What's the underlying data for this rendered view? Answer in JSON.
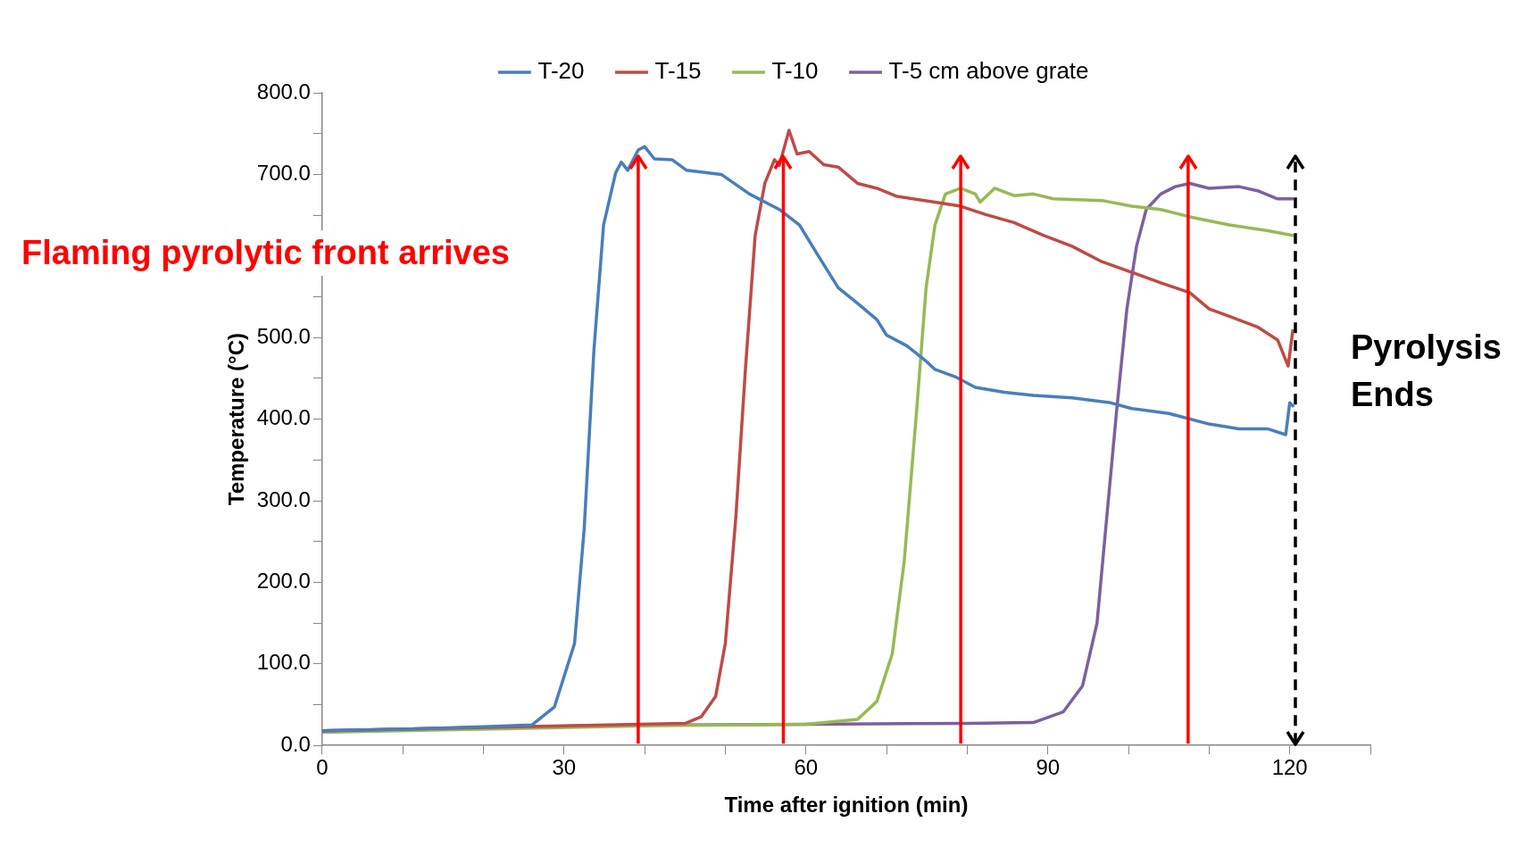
{
  "chart_data": {
    "type": "line",
    "xlabel": "Time after ignition (min)",
    "ylabel": "Temperature (°C)",
    "xlim": [
      0,
      130
    ],
    "xticks": [
      0,
      {
        "value": 10,
        "label": null
      },
      {
        "value": 20,
        "label": null
      },
      30,
      {
        "value": 40,
        "label": null
      },
      {
        "value": 50,
        "label": null
      },
      60,
      {
        "value": 70,
        "label": null
      },
      {
        "value": 80,
        "label": null
      },
      90,
      {
        "value": 100,
        "label": null
      },
      {
        "value": 110,
        "label": null
      },
      120,
      {
        "value": 130,
        "label": null
      }
    ],
    "ylim": [
      0,
      800
    ],
    "yticks": [
      {
        "value": 0,
        "label": "0.0"
      },
      {
        "value": 50,
        "label": null
      },
      {
        "value": 100,
        "label": "100.0"
      },
      {
        "value": 150,
        "label": null
      },
      {
        "value": 200,
        "label": "200.0"
      },
      {
        "value": 250,
        "label": null
      },
      {
        "value": 300,
        "label": "300.0"
      },
      {
        "value": 350,
        "label": null
      },
      {
        "value": 400,
        "label": "400.0"
      },
      {
        "value": 450,
        "label": null
      },
      {
        "value": 500,
        "label": "500.0"
      },
      {
        "value": 550,
        "label": null
      },
      {
        "value": 600,
        "label": null
      },
      {
        "value": 650,
        "label": null
      },
      {
        "value": 700,
        "label": "700.0"
      },
      {
        "value": 750,
        "label": null
      },
      {
        "value": 800,
        "label": "800.0"
      }
    ],
    "grid": false,
    "legend": "top",
    "marker": "none",
    "line_style": "solid",
    "series": [
      {
        "name": "T-20",
        "color": "#4a7ebb",
        "x": [
          0,
          10,
          20,
          26,
          28.8,
          31.3,
          32.5,
          33.7,
          34.9,
          36.4,
          37.1,
          37.9,
          39.2,
          40,
          41.2,
          43.4,
          45.2,
          49.5,
          53,
          56.7,
          59.2,
          61.6,
          64,
          66.4,
          68.8,
          70,
          72.5,
          74.9,
          76,
          78.5,
          81,
          84.6,
          88.2,
          93,
          97.8,
          100.4,
          105,
          110,
          113.7,
          117.3,
          119.5,
          120,
          120.5
        ],
        "values": [
          18,
          20,
          23,
          25,
          47,
          125,
          266,
          484,
          638,
          702,
          715,
          705,
          730,
          734,
          719,
          718,
          705,
          700,
          676,
          657,
          638,
          599,
          561,
          542,
          522,
          503,
          490,
          471,
          461,
          452,
          439,
          433,
          429,
          426,
          420,
          413,
          407,
          394,
          388,
          388,
          381,
          420,
          415
        ]
      },
      {
        "name": "T-15",
        "color": "#be4b48",
        "x": [
          0,
          15,
          30,
          45,
          47,
          48.8,
          50,
          51.3,
          52.5,
          53.7,
          54.9,
          56.1,
          56.7,
          57.9,
          58.9,
          60.4,
          62.2,
          64,
          66.4,
          68.8,
          71.3,
          76,
          79.2,
          82.2,
          85.8,
          89.5,
          93,
          96.7,
          100.4,
          104,
          107.6,
          110,
          112.5,
          116,
          118.5,
          119.8,
          120.4
        ],
        "values": [
          18,
          21,
          24,
          27,
          35,
          60,
          125,
          279,
          462,
          625,
          689,
          718,
          711,
          754,
          725,
          728,
          712,
          709,
          689,
          683,
          673,
          666,
          661,
          651,
          641,
          625,
          612,
          593,
          580,
          567,
          555,
          535,
          526,
          513,
          497,
          465,
          510
        ]
      },
      {
        "name": "T-10",
        "color": "#98b954",
        "x": [
          0,
          20,
          40,
          60,
          66.4,
          68.8,
          70.7,
          72.2,
          73.7,
          74.9,
          76,
          77.3,
          79.2,
          81,
          81.6,
          83.4,
          85.8,
          88.2,
          90.7,
          96.7,
          100.4,
          104,
          107.6,
          112.5,
          117.3,
          120.5
        ],
        "values": [
          16,
          20,
          24,
          26,
          32,
          54,
          112,
          227,
          407,
          561,
          638,
          676,
          683,
          676,
          666,
          683,
          674,
          676,
          670,
          668,
          661,
          657,
          648,
          638,
          631,
          625
        ]
      },
      {
        "name": "T-5 cm above grate",
        "color": "#7d60a0",
        "x": [
          0,
          20,
          40,
          60,
          80,
          88.2,
          91.9,
          94.3,
          96.1,
          97.3,
          98.5,
          99.8,
          101,
          102.2,
          104,
          105.8,
          107.6,
          110,
          113.7,
          116,
          118.5,
          120.5
        ],
        "values": [
          18,
          22,
          25,
          26,
          27,
          28,
          41,
          73,
          150,
          279,
          407,
          535,
          612,
          657,
          676,
          685,
          689,
          683,
          685,
          680,
          670,
          670
        ]
      }
    ],
    "ref_lines": [
      {
        "axis": "x",
        "value": 39.2,
        "color": "#ff0000",
        "line_style": "solid"
      },
      {
        "axis": "x",
        "value": 57.2,
        "color": "#ff0000",
        "line_style": "solid"
      },
      {
        "axis": "x",
        "value": 79.2,
        "color": "#ff0000",
        "line_style": "solid"
      },
      {
        "axis": "x",
        "value": 107.4,
        "color": "#ff0000",
        "line_style": "solid"
      },
      {
        "axis": "x",
        "value": 120.7,
        "color": "#000000",
        "line_style": "dashed"
      }
    ],
    "annotations": [
      "Flaming pyrolytic front arrives",
      "Pyrolysis Ends"
    ]
  }
}
